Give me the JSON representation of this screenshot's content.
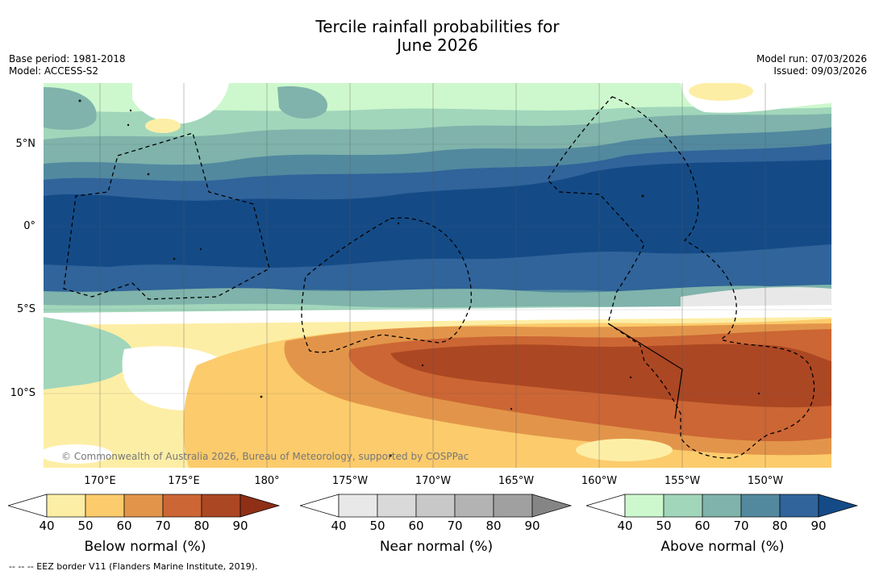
{
  "title_line1": "Tercile rainfall probabilities for",
  "title_line2": "June 2026",
  "meta": {
    "base_period": "Base period: 1981-2018",
    "model": "Model: ACCESS-S2",
    "model_run": "Model run: 07/03/2026",
    "issued": "Issued: 09/03/2026"
  },
  "lat_labels": [
    "5°N",
    "0°",
    "5°S",
    "10°S"
  ],
  "lon_labels": [
    "170°E",
    "175°E",
    "180°",
    "175°W",
    "170°W",
    "165°W",
    "160°W",
    "155°W",
    "150°W"
  ],
  "copyright": "© Commonwealth of Australia 2026, Bureau of Meteorology, supported by COSPPac",
  "colorbars": {
    "below": {
      "title": "Below normal (%)",
      "ticks": [
        "40",
        "50",
        "60",
        "70",
        "80",
        "90"
      ],
      "colors": [
        "#ffffff",
        "#fdeea6",
        "#fccb6c",
        "#e2954a",
        "#cc6634",
        "#ac4723",
        "#8e2f16"
      ]
    },
    "near": {
      "title": "Near normal (%)",
      "ticks": [
        "40",
        "50",
        "60",
        "70",
        "80",
        "90"
      ],
      "colors": [
        "#ffffff",
        "#e8e8e8",
        "#d9d9d9",
        "#c8c8c8",
        "#b3b3b3",
        "#a0a0a0",
        "#858585"
      ]
    },
    "above": {
      "title": "Above normal (%)",
      "ticks": [
        "40",
        "50",
        "60",
        "70",
        "80",
        "90"
      ],
      "colors": [
        "#ffffff",
        "#cdf8cd",
        "#a1d6bb",
        "#7fb3ab",
        "#52899f",
        "#30649a",
        "#144b87"
      ]
    }
  },
  "footer": "-- -- -- EEZ border V11 (Flanders Marine Institute, 2019)."
}
